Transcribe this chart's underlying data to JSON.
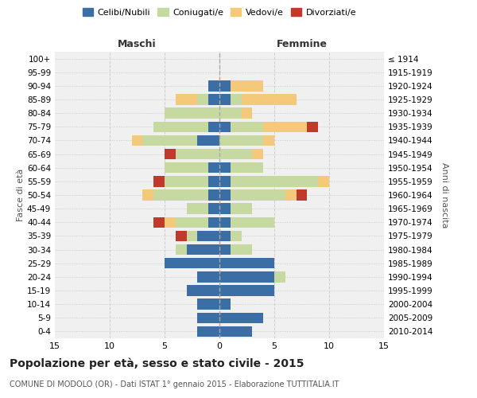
{
  "age_groups": [
    "0-4",
    "5-9",
    "10-14",
    "15-19",
    "20-24",
    "25-29",
    "30-34",
    "35-39",
    "40-44",
    "45-49",
    "50-54",
    "55-59",
    "60-64",
    "65-69",
    "70-74",
    "75-79",
    "80-84",
    "85-89",
    "90-94",
    "95-99",
    "100+"
  ],
  "birth_years": [
    "2010-2014",
    "2005-2009",
    "2000-2004",
    "1995-1999",
    "1990-1994",
    "1985-1989",
    "1980-1984",
    "1975-1979",
    "1970-1974",
    "1965-1969",
    "1960-1964",
    "1955-1959",
    "1950-1954",
    "1945-1949",
    "1940-1944",
    "1935-1939",
    "1930-1934",
    "1925-1929",
    "1920-1924",
    "1915-1919",
    "≤ 1914"
  ],
  "maschi": {
    "celibi": [
      2,
      2,
      2,
      3,
      2,
      5,
      3,
      2,
      1,
      1,
      1,
      1,
      1,
      0,
      2,
      1,
      0,
      1,
      1,
      0,
      0
    ],
    "coniugati": [
      0,
      0,
      0,
      0,
      0,
      0,
      1,
      1,
      3,
      2,
      5,
      4,
      4,
      4,
      5,
      5,
      5,
      1,
      0,
      0,
      0
    ],
    "vedovi": [
      0,
      0,
      0,
      0,
      0,
      0,
      0,
      0,
      1,
      0,
      1,
      0,
      0,
      0,
      1,
      0,
      0,
      2,
      0,
      0,
      0
    ],
    "divorziati": [
      0,
      0,
      0,
      0,
      0,
      0,
      0,
      1,
      1,
      0,
      0,
      1,
      0,
      1,
      0,
      0,
      0,
      0,
      0,
      0,
      0
    ]
  },
  "femmine": {
    "nubili": [
      3,
      4,
      1,
      5,
      5,
      5,
      1,
      1,
      1,
      1,
      1,
      1,
      1,
      0,
      0,
      1,
      0,
      1,
      1,
      0,
      0
    ],
    "coniugate": [
      0,
      0,
      0,
      0,
      1,
      0,
      2,
      1,
      4,
      2,
      5,
      8,
      3,
      3,
      4,
      3,
      2,
      1,
      0,
      0,
      0
    ],
    "vedove": [
      0,
      0,
      0,
      0,
      0,
      0,
      0,
      0,
      0,
      0,
      1,
      1,
      0,
      1,
      1,
      4,
      1,
      5,
      3,
      0,
      0
    ],
    "divorziate": [
      0,
      0,
      0,
      0,
      0,
      0,
      0,
      0,
      0,
      0,
      1,
      0,
      0,
      0,
      0,
      1,
      0,
      0,
      0,
      0,
      0
    ]
  },
  "colors": {
    "celibi_nubili": "#3a6ea5",
    "coniugati": "#c5d9a0",
    "vedovi": "#f5c97a",
    "divorziati": "#c0392b"
  },
  "xlim": 15,
  "title": "Popolazione per età, sesso e stato civile - 2015",
  "subtitle": "COMUNE DI MODOLO (OR) - Dati ISTAT 1° gennaio 2015 - Elaborazione TUTTITALIA.IT",
  "ylabel_left": "Fasce di età",
  "ylabel_right": "Anni di nascita",
  "xlabel_left": "Maschi",
  "xlabel_right": "Femmine",
  "bg_color": "#f0f0f0",
  "grid_color": "#cccccc"
}
